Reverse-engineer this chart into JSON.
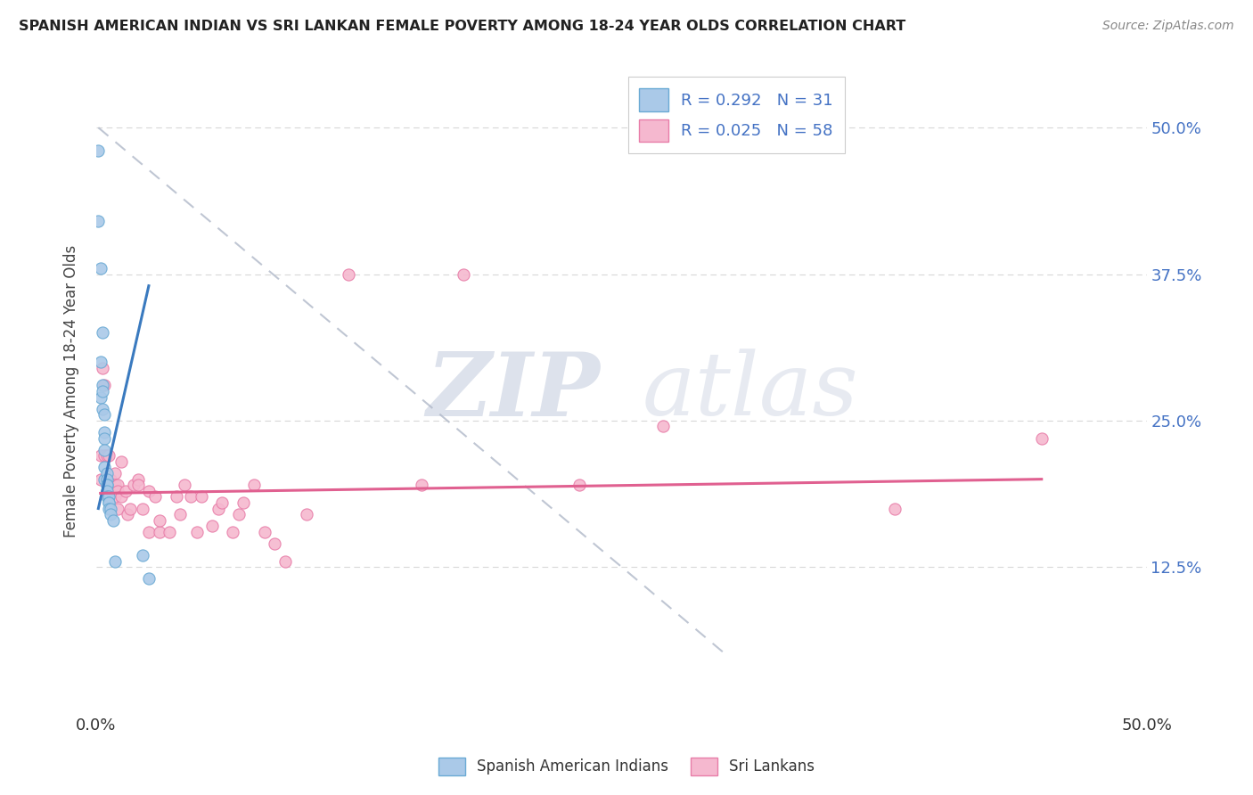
{
  "title": "SPANISH AMERICAN INDIAN VS SRI LANKAN FEMALE POVERTY AMONG 18-24 YEAR OLDS CORRELATION CHART",
  "source": "Source: ZipAtlas.com",
  "ylabel": "Female Poverty Among 18-24 Year Olds",
  "legend1_r": "0.292",
  "legend1_n": "31",
  "legend2_r": "0.025",
  "legend2_n": "58",
  "color_blue": "#aac9e8",
  "color_blue_edge": "#6aaad4",
  "color_blue_line": "#3a7abf",
  "color_pink": "#f5b8cf",
  "color_pink_edge": "#e87da8",
  "color_pink_line": "#e06090",
  "color_dashed": "#b0b8c8",
  "background_color": "#ffffff",
  "grid_color": "#d8d8d8",
  "watermark_zip": "ZIP",
  "watermark_atlas": "atlas",
  "blue_scatter_x": [
    0.001,
    0.001,
    0.002,
    0.002,
    0.002,
    0.003,
    0.003,
    0.003,
    0.003,
    0.004,
    0.004,
    0.004,
    0.004,
    0.004,
    0.004,
    0.005,
    0.005,
    0.005,
    0.005,
    0.005,
    0.005,
    0.006,
    0.006,
    0.006,
    0.006,
    0.007,
    0.007,
    0.008,
    0.009,
    0.022,
    0.025
  ],
  "blue_scatter_y": [
    0.48,
    0.42,
    0.38,
    0.3,
    0.27,
    0.325,
    0.28,
    0.275,
    0.26,
    0.255,
    0.24,
    0.235,
    0.225,
    0.21,
    0.2,
    0.205,
    0.2,
    0.195,
    0.195,
    0.19,
    0.185,
    0.185,
    0.18,
    0.18,
    0.175,
    0.175,
    0.17,
    0.165,
    0.13,
    0.135,
    0.115
  ],
  "pink_scatter_x": [
    0.002,
    0.002,
    0.003,
    0.004,
    0.004,
    0.005,
    0.005,
    0.006,
    0.006,
    0.007,
    0.007,
    0.008,
    0.008,
    0.009,
    0.009,
    0.009,
    0.01,
    0.01,
    0.01,
    0.012,
    0.012,
    0.014,
    0.015,
    0.016,
    0.018,
    0.02,
    0.02,
    0.022,
    0.025,
    0.025,
    0.028,
    0.03,
    0.03,
    0.035,
    0.038,
    0.04,
    0.042,
    0.045,
    0.048,
    0.05,
    0.055,
    0.058,
    0.06,
    0.065,
    0.068,
    0.07,
    0.075,
    0.08,
    0.085,
    0.09,
    0.1,
    0.12,
    0.155,
    0.175,
    0.23,
    0.27,
    0.38,
    0.45
  ],
  "pink_scatter_y": [
    0.22,
    0.2,
    0.295,
    0.28,
    0.22,
    0.22,
    0.2,
    0.22,
    0.2,
    0.2,
    0.195,
    0.195,
    0.19,
    0.205,
    0.195,
    0.185,
    0.195,
    0.19,
    0.175,
    0.185,
    0.215,
    0.19,
    0.17,
    0.175,
    0.195,
    0.2,
    0.195,
    0.175,
    0.19,
    0.155,
    0.185,
    0.155,
    0.165,
    0.155,
    0.185,
    0.17,
    0.195,
    0.185,
    0.155,
    0.185,
    0.16,
    0.175,
    0.18,
    0.155,
    0.17,
    0.18,
    0.195,
    0.155,
    0.145,
    0.13,
    0.17,
    0.375,
    0.195,
    0.375,
    0.195,
    0.245,
    0.175,
    0.235
  ],
  "blue_line_x": [
    0.001,
    0.025
  ],
  "blue_line_y": [
    0.175,
    0.365
  ],
  "pink_line_x": [
    0.002,
    0.45
  ],
  "pink_line_y": [
    0.188,
    0.2
  ],
  "dash_line_x": [
    0.001,
    0.3
  ],
  "dash_line_y": [
    0.5,
    0.05
  ],
  "xlim": [
    0.0,
    0.5
  ],
  "ylim": [
    0.0,
    0.55
  ],
  "xticks": [
    0.0,
    0.5
  ],
  "yticks": [
    0.125,
    0.25,
    0.375,
    0.5
  ],
  "xticklabels": [
    "0.0%",
    "50.0%"
  ],
  "yticklabels_right": [
    "12.5%",
    "25.0%",
    "37.5%",
    "50.0%"
  ]
}
